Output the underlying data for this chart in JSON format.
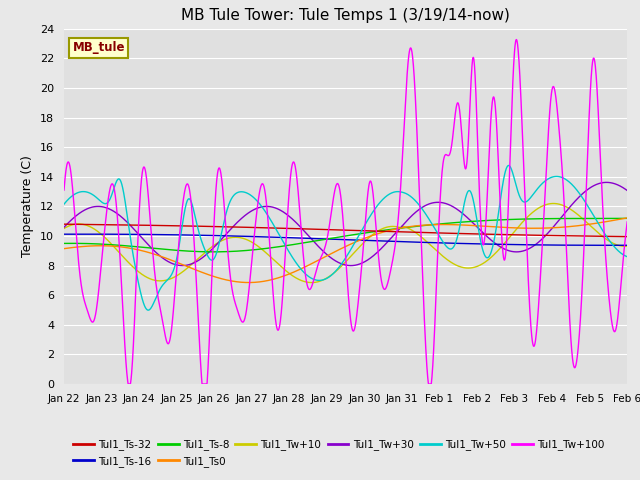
{
  "title": "MB Tule Tower: Tule Temps 1 (3/19/14-now)",
  "ylabel": "Temperature (C)",
  "background_color": "#e8e8e8",
  "plot_bg_color": "#e0e0e0",
  "ylim": [
    0,
    24
  ],
  "yticks": [
    0,
    2,
    4,
    6,
    8,
    10,
    12,
    14,
    16,
    18,
    20,
    22,
    24
  ],
  "x_start": 0,
  "x_end": 15.0,
  "series": {
    "Tul1_Ts-32": {
      "color": "#cc0000"
    },
    "Tul1_Ts-16": {
      "color": "#0000cc"
    },
    "Tul1_Ts-8": {
      "color": "#00cc00"
    },
    "Tul1_Ts0": {
      "color": "#ff8800"
    },
    "Tul1_Tw+10": {
      "color": "#cccc00"
    },
    "Tul1_Tw+30": {
      "color": "#8800cc"
    },
    "Tul1_Tw+50": {
      "color": "#00cccc"
    },
    "Tul1_Tw+100": {
      "color": "#ff00ff"
    }
  },
  "xtick_labels": [
    "Jan 22",
    "Jan 23",
    "Jan 24",
    "Jan 25",
    "Jan 26",
    "Jan 27",
    "Jan 28",
    "Jan 29",
    "Jan 30",
    "Jan 31",
    "Feb 1",
    "Feb 2",
    "Feb 3",
    "Feb 4",
    "Feb 5",
    "Feb 6"
  ],
  "xtick_positions": [
    0,
    1,
    2,
    3,
    4,
    5,
    6,
    7,
    8,
    9,
    10,
    11,
    12,
    13,
    14,
    15
  ],
  "watermark": "MB_tule",
  "title_fontsize": 11,
  "lw": 1.0
}
